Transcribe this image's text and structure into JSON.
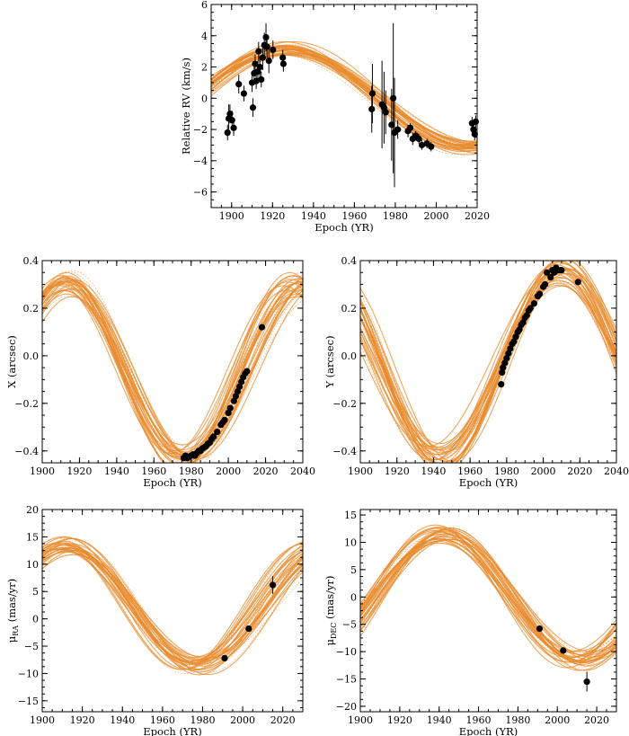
{
  "chart_data": [
    {
      "id": "rv",
      "type": "scatter",
      "xlabel": "Epoch (YR)",
      "ylabel": "Relative RV (km/s)",
      "xlim": [
        1890,
        2020
      ],
      "ylim": [
        -7,
        6
      ],
      "xticks": [
        1900,
        1920,
        1940,
        1960,
        1980,
        2000,
        2020
      ],
      "yticks": [
        -6,
        -4,
        -2,
        0,
        2,
        4,
        6
      ],
      "colors": {
        "model": "#e8892b",
        "data": "#000000"
      },
      "series": [
        {
          "name": "",
          "role": "orbit-model-draws",
          "model": {
            "amplitude": 3.2,
            "phase_peak": 1927,
            "period": 180,
            "offset": 0.0
          }
        },
        {
          "name": "",
          "role": "observations",
          "points": [
            [
              1898,
              -2.2,
              0.5
            ],
            [
              1898.6,
              -1.3,
              0.9
            ],
            [
              1899.2,
              -1.0,
              0.6
            ],
            [
              1900.2,
              -1.4,
              0.6
            ],
            [
              1901,
              -1.9,
              0.5
            ],
            [
              1903.5,
              0.9,
              0.6
            ],
            [
              1906,
              0.3,
              0.5
            ],
            [
              1910,
              1.0,
              0.6
            ],
            [
              1910.4,
              -0.6,
              0.6
            ],
            [
              1911,
              1.6,
              0.7
            ],
            [
              1911.5,
              2.2,
              0.6
            ],
            [
              1912,
              1.1,
              0.5
            ],
            [
              1912.8,
              1.7,
              0.7
            ],
            [
              1913.2,
              3.0,
              0.6
            ],
            [
              1913.8,
              2.0,
              0.7
            ],
            [
              1914.5,
              1.2,
              0.5
            ],
            [
              1915.2,
              2.6,
              0.8
            ],
            [
              1916,
              3.4,
              0.8
            ],
            [
              1916.8,
              3.9,
              0.9
            ],
            [
              1917.3,
              3.3,
              0.7
            ],
            [
              1918.2,
              2.4,
              0.8
            ],
            [
              1920.2,
              3.1,
              0.6
            ],
            [
              1925,
              2.6,
              0.5
            ],
            [
              1925.3,
              2.2,
              0.5
            ],
            [
              1968.5,
              -0.7,
              1.5
            ],
            [
              1968.8,
              0.3,
              1.9
            ],
            [
              1973.5,
              -0.4,
              2.8
            ],
            [
              1974.5,
              -0.6,
              2.3
            ],
            [
              1975.3,
              -0.9,
              1.4
            ],
            [
              1978.2,
              -1.7,
              2.3
            ],
            [
              1979,
              0.0,
              4.8
            ],
            [
              1979.6,
              -2.2,
              3.5
            ],
            [
              1981.2,
              -2.0,
              0.6
            ],
            [
              1986.2,
              -2.1,
              0.4
            ],
            [
              1987.3,
              -1.9,
              0.3
            ],
            [
              1988.5,
              -2.6,
              0.4
            ],
            [
              1990,
              -2.4,
              0.3
            ],
            [
              1991.5,
              -2.6,
              0.3
            ],
            [
              1993,
              -3.0,
              0.3
            ],
            [
              1995.5,
              -2.9,
              0.3
            ],
            [
              1997.5,
              -3.1,
              0.3
            ],
            [
              2017.5,
              -1.6,
              0.4
            ],
            [
              2018.2,
              -2.0,
              0.4
            ],
            [
              2018.8,
              -2.3,
              0.4
            ],
            [
              2019.3,
              -1.5,
              0.4
            ]
          ]
        }
      ]
    },
    {
      "id": "x",
      "type": "scatter",
      "xlabel": "Epoch (YR)",
      "ylabel": "X (arcsec)",
      "xlim": [
        1900,
        2040
      ],
      "ylim": [
        -0.45,
        0.4
      ],
      "xticks": [
        1900,
        1920,
        1940,
        1960,
        1980,
        2000,
        2020,
        2040
      ],
      "yticks": [
        -0.4,
        -0.2,
        0.0,
        0.2,
        0.4
      ],
      "ytick_labels": [
        "−0.4",
        "−0.2",
        "0.0",
        "0.2",
        "0.4"
      ],
      "colors": {
        "model": "#e8892b",
        "data": "#000000"
      },
      "series": [
        {
          "name": "",
          "role": "orbit-model-draws",
          "model": {
            "amplitude": 0.37,
            "phase_peak": 1913,
            "period": 127,
            "offset": -0.065
          }
        },
        {
          "name": "",
          "role": "observations",
          "points": [
            [
              1976,
              -0.43
            ],
            [
              1977,
              -0.42
            ],
            [
              1978,
              -0.43
            ],
            [
              1979,
              -0.425
            ],
            [
              1980,
              -0.42
            ],
            [
              1981,
              -0.415
            ],
            [
              1982,
              -0.42
            ],
            [
              1983,
              -0.41
            ],
            [
              1984,
              -0.4
            ],
            [
              1985,
              -0.4
            ],
            [
              1986,
              -0.39
            ],
            [
              1987,
              -0.385
            ],
            [
              1988,
              -0.38
            ],
            [
              1989,
              -0.37
            ],
            [
              1990,
              -0.365
            ],
            [
              1991,
              -0.35
            ],
            [
              1992,
              -0.34
            ],
            [
              1994,
              -0.32
            ],
            [
              1996,
              -0.29
            ],
            [
              1997,
              -0.28
            ],
            [
              1998,
              -0.27
            ],
            [
              2000,
              -0.24
            ],
            [
              2001,
              -0.22
            ],
            [
              2003,
              -0.19
            ],
            [
              2004,
              -0.17
            ],
            [
              2005,
              -0.15
            ],
            [
              2006,
              -0.13
            ],
            [
              2007,
              -0.11
            ],
            [
              2008,
              -0.09
            ],
            [
              2009,
              -0.075
            ],
            [
              2010,
              -0.065
            ],
            [
              2018,
              0.12
            ]
          ]
        }
      ]
    },
    {
      "id": "y",
      "type": "scatter",
      "xlabel": "Epoch (YR)",
      "ylabel": "Y (arcsec)",
      "xlim": [
        1900,
        2040
      ],
      "ylim": [
        -0.45,
        0.4
      ],
      "xticks": [
        1900,
        1920,
        1940,
        1960,
        1980,
        2000,
        2020,
        2040
      ],
      "yticks": [
        -0.4,
        -0.2,
        0.0,
        0.2,
        0.4
      ],
      "ytick_labels": [
        "−0.4",
        "−0.2",
        "0.0",
        "0.2",
        "0.4"
      ],
      "colors": {
        "model": "#e8892b",
        "data": "#000000"
      },
      "series": [
        {
          "name": "",
          "role": "orbit-model-draws",
          "model": {
            "amplitude": 0.4,
            "phase_peak": 2010,
            "period": 133,
            "offset": -0.035
          }
        },
        {
          "name": "",
          "role": "observations",
          "points": [
            [
              1977,
              -0.12
            ],
            [
              1977.5,
              -0.07
            ],
            [
              1978,
              -0.05
            ],
            [
              1979,
              -0.03
            ],
            [
              1980,
              -0.01
            ],
            [
              1981,
              0.01
            ],
            [
              1982,
              0.03
            ],
            [
              1983,
              0.05
            ],
            [
              1984,
              0.06
            ],
            [
              1985,
              0.08
            ],
            [
              1986,
              0.1
            ],
            [
              1987,
              0.11
            ],
            [
              1988,
              0.13
            ],
            [
              1989,
              0.14
            ],
            [
              1990,
              0.16
            ],
            [
              1991,
              0.17
            ],
            [
              1992,
              0.19
            ],
            [
              1993,
              0.2
            ],
            [
              1995,
              0.22
            ],
            [
              1997,
              0.25
            ],
            [
              1998,
              0.26
            ],
            [
              2000,
              0.29
            ],
            [
              2001,
              0.3
            ],
            [
              2002,
              0.35
            ],
            [
              2004,
              0.33
            ],
            [
              2005,
              0.36
            ],
            [
              2006,
              0.35
            ],
            [
              2007,
              0.37
            ],
            [
              2008,
              0.36
            ],
            [
              2009,
              0.36
            ],
            [
              2010,
              0.36
            ],
            [
              2019,
              0.31
            ]
          ]
        }
      ]
    },
    {
      "id": "mura",
      "type": "scatter",
      "xlabel": "Epoch (YR)",
      "ylabel": "μ_RA (mas/yr)",
      "ylabel_main": "μ",
      "ylabel_sub": "RA",
      "ylabel_unit": " (mas/yr)",
      "xlim": [
        1900,
        2030
      ],
      "ylim": [
        -17,
        20
      ],
      "xticks": [
        1900,
        1920,
        1940,
        1960,
        1980,
        2000,
        2020
      ],
      "yticks": [
        -15,
        -10,
        -5,
        0,
        5,
        10,
        15,
        20
      ],
      "colors": {
        "model": "#e8892b",
        "data": "#000000"
      },
      "series": [
        {
          "name": "",
          "role": "orbit-model-draws",
          "model": {
            "amplitude": 11.0,
            "phase_peak": 1912,
            "period": 130,
            "offset": 2.5
          }
        },
        {
          "name": "",
          "role": "observations",
          "points": [
            [
              1991,
              -7.2,
              0.4
            ],
            [
              2003,
              -1.8,
              0.4
            ],
            [
              2015,
              6.2,
              1.6
            ]
          ]
        }
      ]
    },
    {
      "id": "mudec",
      "type": "scatter",
      "xlabel": "Epoch (YR)",
      "ylabel": "μ_DEC (mas/yr)",
      "ylabel_main": "μ",
      "ylabel_sub": "DEC",
      "ylabel_unit": " (mas/yr)",
      "xlim": [
        1900,
        2030
      ],
      "ylim": [
        -21,
        16
      ],
      "xticks": [
        1900,
        1920,
        1940,
        1960,
        1980,
        2000,
        2020
      ],
      "yticks": [
        -20,
        -15,
        -10,
        -5,
        0,
        5,
        10,
        15
      ],
      "colors": {
        "model": "#e8892b",
        "data": "#000000"
      },
      "series": [
        {
          "name": "",
          "role": "orbit-model-draws",
          "model": {
            "amplitude": 11.5,
            "phase_peak": 1942,
            "period": 140,
            "offset": 0.0
          }
        },
        {
          "name": "",
          "role": "observations",
          "points": [
            [
              1991,
              -5.8,
              0.4
            ],
            [
              2003,
              -9.8,
              0.5
            ],
            [
              2015,
              -15.5,
              1.8
            ]
          ]
        }
      ]
    }
  ]
}
